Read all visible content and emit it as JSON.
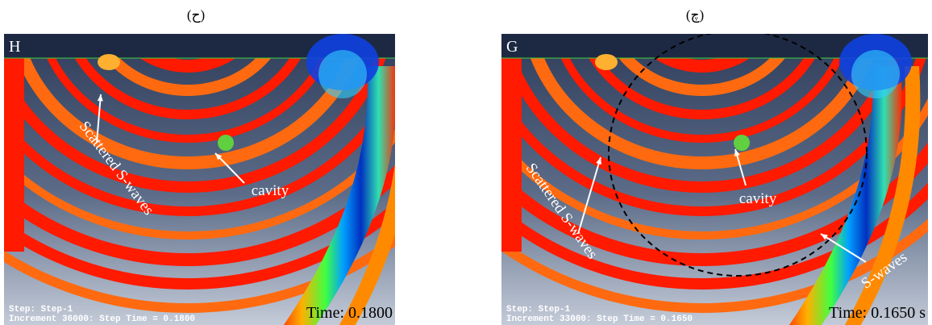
{
  "figure": {
    "panels": [
      {
        "caption": "(ح)",
        "letter": "H",
        "annotations": [
          "Scattered S-waves",
          "cavity"
        ],
        "step": "Step: Step-1",
        "increment": "Increment     36000: Step Time =    0.1800",
        "time": "Time: 0.1800"
      },
      {
        "caption": "(چ)",
        "letter": "G",
        "annotations": [
          "Scattered S-waves",
          "cavity",
          "S-waves"
        ],
        "step": "Step: Step-1",
        "increment": "Increment     33000: Step Time =    0.1650",
        "time": "Time: 0.1650 s"
      }
    ]
  }
}
